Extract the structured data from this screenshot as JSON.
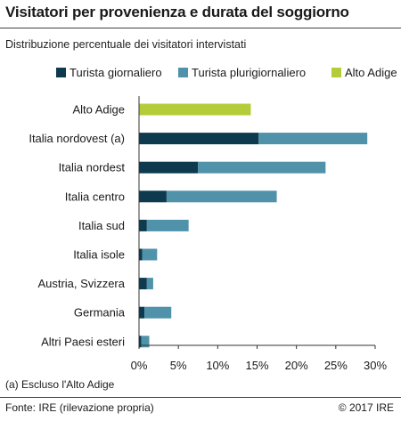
{
  "header": {
    "title": "Visitatori per provenienza e durata del soggiorno",
    "subtitle": "Distribuzione percentuale dei visitatori intervistati"
  },
  "footer": {
    "note": "(a) Escluso l'Alto Adige",
    "source": "Fonte: IRE (rilevazione propria)",
    "copyright": "© 2017 IRE"
  },
  "chart_data": {
    "type": "bar",
    "orientation": "horizontal",
    "stacked": true,
    "categories": [
      "Alto Adige",
      "Italia nordovest (a)",
      "Italia nordest",
      "Italia centro",
      "Italia sud",
      "Italia isole",
      "Austria, Svizzera",
      "Germania",
      "Altri Paesi esteri"
    ],
    "series": [
      {
        "name": "Turista giornaliero",
        "color": "#0d3a4f",
        "values": [
          0,
          15.2,
          7.5,
          3.5,
          1.0,
          0.4,
          1.0,
          0.7,
          0.3
        ]
      },
      {
        "name": "Turista plurigiornaliero",
        "color": "#4f92aa",
        "values": [
          0,
          13.8,
          16.2,
          14.0,
          5.3,
          1.9,
          0.8,
          3.4,
          1.0
        ]
      },
      {
        "name": "Alto Adige",
        "color": "#b5cc3a",
        "values": [
          14.2,
          0,
          0,
          0,
          0,
          0,
          0,
          0,
          0
        ]
      }
    ],
    "xlim": [
      0,
      30
    ],
    "xticks": [
      0,
      5,
      10,
      15,
      20,
      25,
      30
    ],
    "tick_format": "{v}%",
    "legend_position": "top-right",
    "grid": false
  }
}
